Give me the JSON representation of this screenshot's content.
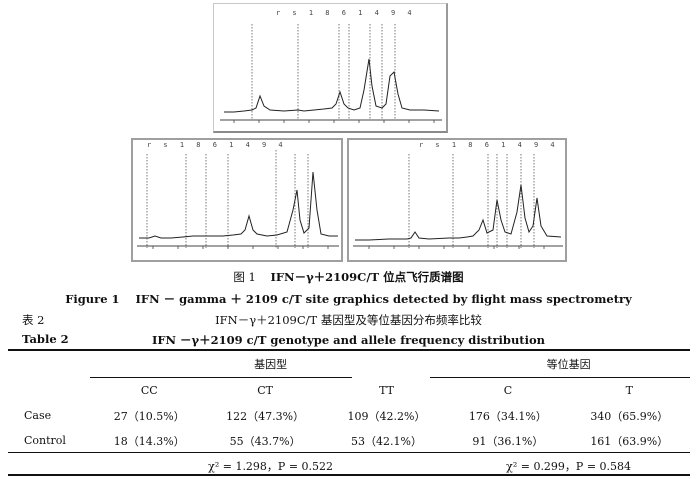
{
  "plot_labels": {
    "top": "r s 1 8 6 1 4 9 4",
    "left": "r s 1 8 6 1 4 9 4",
    "right": "r s 1 8 6 1 4 9 4"
  },
  "figure": {
    "caption_cn_label": "图 1",
    "caption_cn_title": "IFN－γ＋2109C/T 位点飞行质谱图",
    "caption_en_label": "Figure 1",
    "caption_en_title": "IFN － gamma ＋ 2109 c/T site graphics detected by flight mass spectrometry"
  },
  "table_caption": {
    "cn_label": "表 2",
    "cn_title": "IFN－γ＋2109C/T 基因型及等位基因分布频率比较",
    "en_label": "Table 2",
    "en_title": "IFN －γ＋2109 c/T genotype and allele frequency distribution"
  },
  "table": {
    "group_headers": [
      "基因型",
      "等位基因"
    ],
    "columns": [
      "CC",
      "CT",
      "TT",
      "C",
      "T"
    ],
    "rows": [
      {
        "label": "Case",
        "cells": [
          "27（10.5%）",
          "122（47.3%）",
          "109（42.2%）",
          "176（34.1%）",
          "340（65.9%）"
        ]
      },
      {
        "label": "Control",
        "cells": [
          "18（14.3%）",
          "55（43.7%）",
          "53（42.1%）",
          "91（36.1%）",
          "161（63.9%）"
        ]
      }
    ],
    "stats": [
      "χ² = 1.298，P = 0.522",
      "χ² = 0.299，P = 0.584"
    ]
  }
}
